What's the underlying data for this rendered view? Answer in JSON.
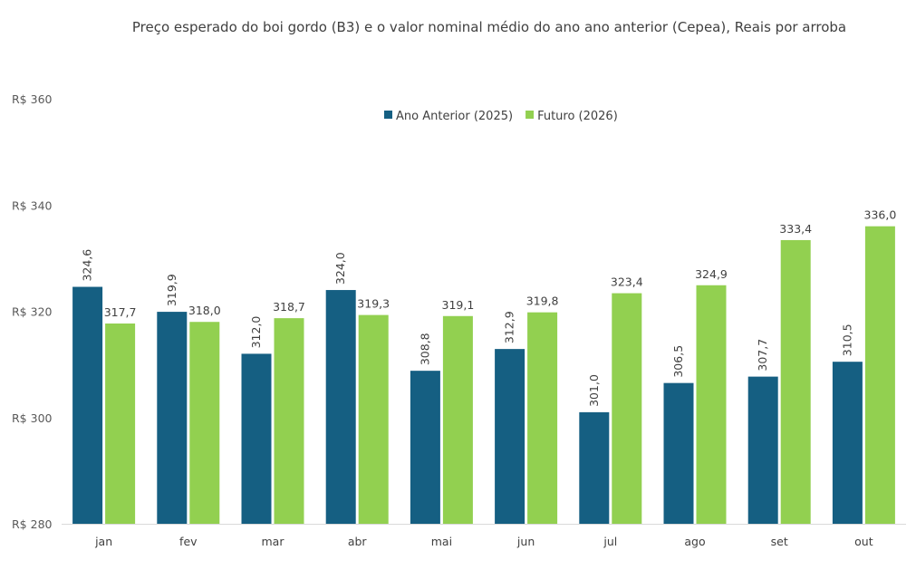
{
  "chart_data": {
    "type": "bar",
    "title": "Preço esperado do boi gordo (B3) e o valor nominal médio do ano ano anterior (Cepea), Reais por arroba",
    "categories": [
      "jan",
      "fev",
      "mar",
      "abr",
      "mai",
      "jun",
      "jul",
      "ago",
      "set",
      "out"
    ],
    "series": [
      {
        "name": "Ano Anterior (2025)",
        "color": "#155F82",
        "values": [
          324.6,
          319.9,
          312.0,
          324.0,
          308.8,
          312.9,
          301.0,
          306.5,
          307.7,
          310.5
        ],
        "labels": [
          "324,6",
          "319,9",
          "312,0",
          "324,0",
          "308,8",
          "312,9",
          "301,0",
          "306,5",
          "307,7",
          "310,5"
        ]
      },
      {
        "name": "Futuro (2026)",
        "color": "#92D050",
        "values": [
          317.7,
          318.0,
          318.7,
          319.3,
          319.1,
          319.8,
          323.4,
          324.9,
          333.4,
          336.0
        ],
        "labels": [
          "317,7",
          "318,0",
          "318,7",
          "319,3",
          "319,1",
          "319,8",
          "323,4",
          "324,9",
          "333,4",
          "336,0"
        ]
      }
    ],
    "ylim": [
      280,
      360
    ],
    "yticks": [
      280,
      300,
      320,
      340,
      360
    ],
    "ytick_labels": [
      "R$ 280",
      "R$ 300",
      "R$ 320",
      "R$ 340",
      "R$ 360"
    ],
    "xlabel": "",
    "ylabel": "",
    "grid": false,
    "legend_position": "top-center"
  }
}
